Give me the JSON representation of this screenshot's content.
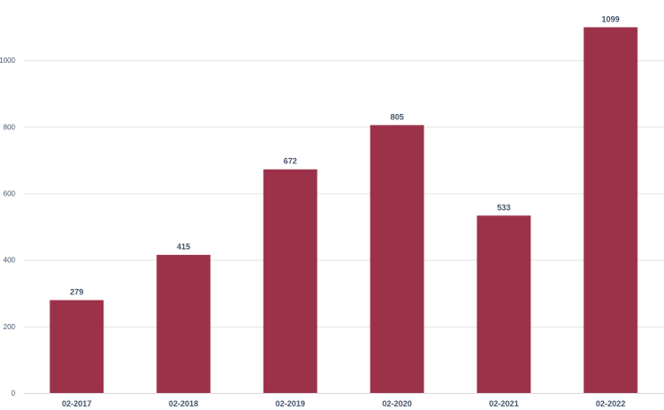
{
  "chart_data": {
    "type": "bar",
    "categories": [
      "02-2017",
      "02-2018",
      "02-2019",
      "02-2020",
      "02-2021",
      "02-2022"
    ],
    "values": [
      279,
      415,
      672,
      805,
      533,
      1099
    ],
    "ylim": [
      0,
      1100
    ],
    "yticks": [
      0,
      200,
      400,
      600,
      800,
      1000
    ],
    "grid": true,
    "data_labels": true,
    "bar_color": "#9b3249",
    "text_color": "#44546a",
    "title": "",
    "xlabel": "",
    "ylabel": ""
  }
}
